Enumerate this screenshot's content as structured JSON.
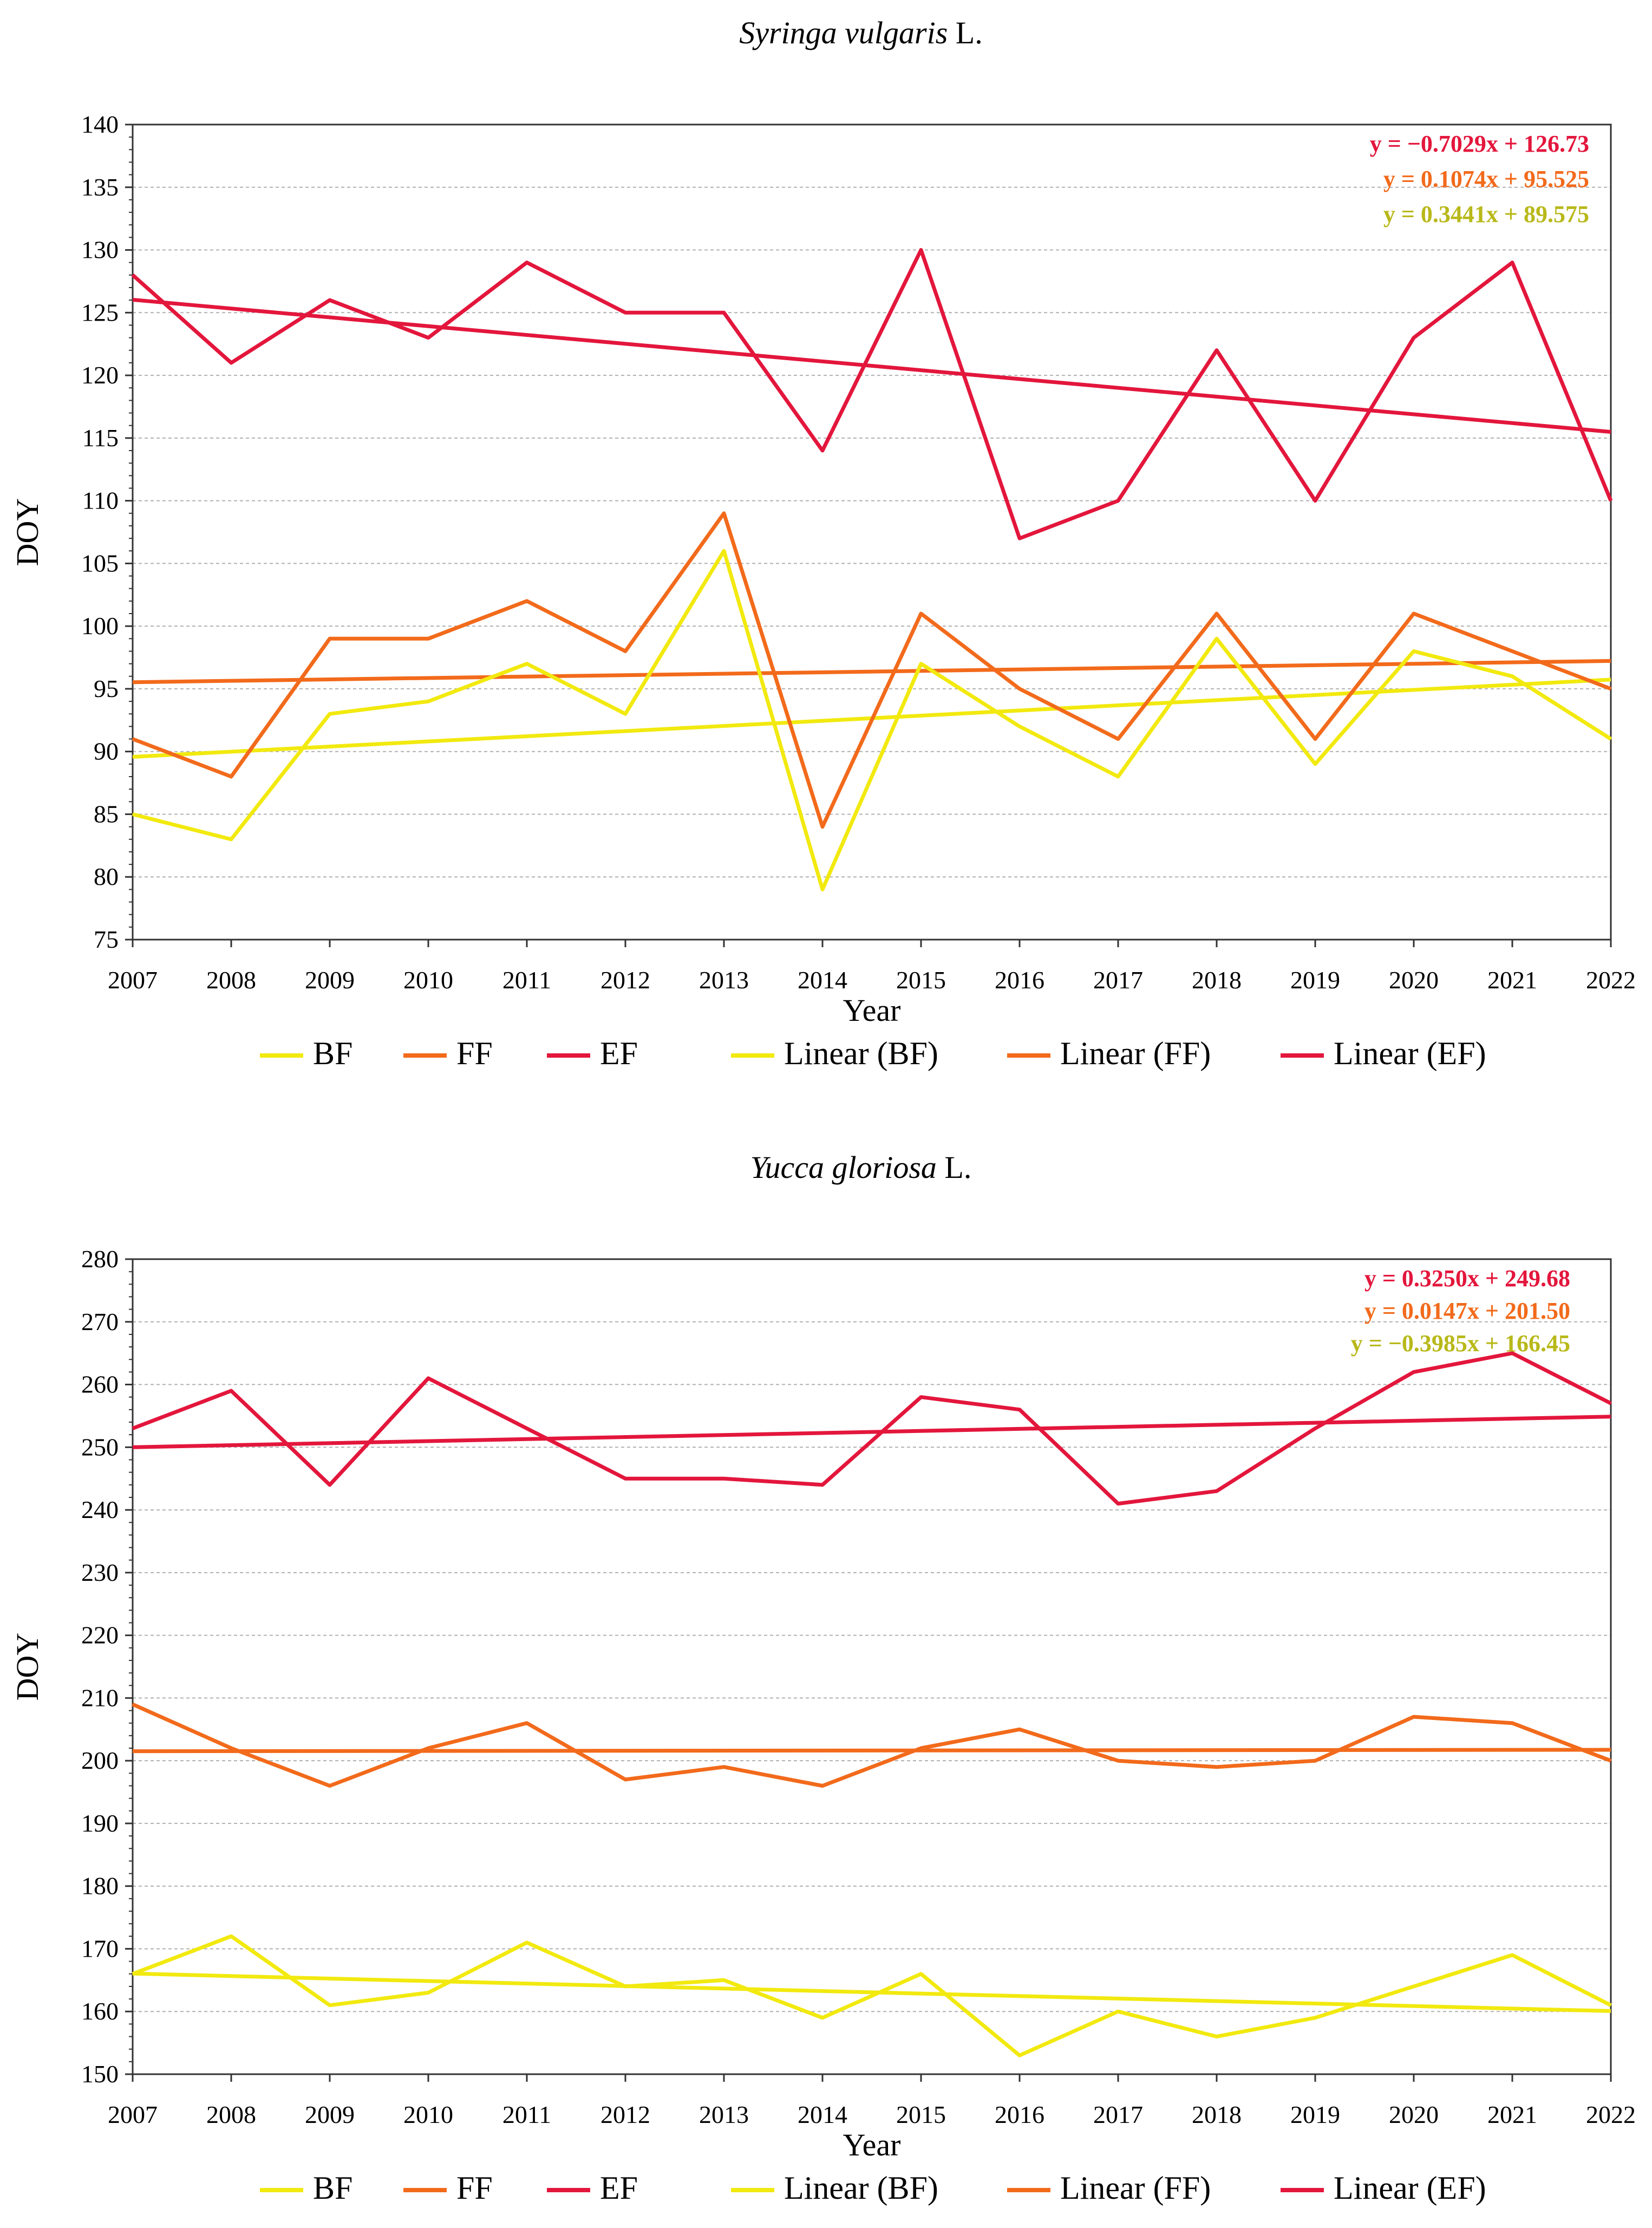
{
  "colors": {
    "BF": "#f2e90f",
    "FF": "#f26a1b",
    "EF": "#e3163c",
    "eqBF": "#b8b81a",
    "eqFF": "#f26a1b",
    "eqEF": "#e3163c"
  },
  "chart_data": [
    {
      "type": "line",
      "title": "Syringa vulgaris",
      "title_suffix": " L.",
      "xlabel": "Year",
      "ylabel": "DOY",
      "ylim": [
        75,
        140
      ],
      "ystep": 5,
      "categories": [
        "2007",
        "2008",
        "2009",
        "2010",
        "2011",
        "2012",
        "2013",
        "2014",
        "2015",
        "2016",
        "2017",
        "2018",
        "2019",
        "2020",
        "2021",
        "2022"
      ],
      "series": [
        {
          "key": "BF",
          "name": "BF",
          "values": [
            85,
            83,
            93,
            94,
            97,
            93,
            106,
            79,
            97,
            92,
            88,
            99,
            89,
            98,
            96,
            91
          ],
          "trend": [
            89.575,
            95.737
          ]
        },
        {
          "key": "FF",
          "name": "FF",
          "values": [
            91,
            88,
            99,
            99,
            102,
            98,
            109,
            84,
            101,
            95,
            91,
            101,
            91,
            101,
            98,
            95
          ],
          "trend": [
            95.525,
            97.224
          ]
        },
        {
          "key": "EF",
          "name": "EF",
          "values": [
            128,
            121,
            126,
            123,
            129,
            125,
            125,
            114,
            130,
            107,
            110,
            122,
            110,
            123,
            129,
            110
          ],
          "trend": [
            126.03,
            115.49
          ]
        }
      ],
      "equations": [
        {
          "key": "EF",
          "text": "y = −0.7029x + 126.73"
        },
        {
          "key": "FF",
          "text": "y = 0.1074x + 95.525"
        },
        {
          "key": "BF",
          "text": "y = 0.3441x + 89.575"
        }
      ],
      "legend": [
        "BF",
        "FF",
        "EF",
        "Linear (BF)",
        "Linear (FF)",
        "Linear (EF)"
      ]
    },
    {
      "type": "line",
      "title": "Yucca gloriosa",
      "title_suffix": " L.",
      "xlabel": "Year",
      "ylabel": "DOY",
      "ylim": [
        150,
        280
      ],
      "ystep": 10,
      "categories": [
        "2007",
        "2008",
        "2009",
        "2010",
        "2011",
        "2012",
        "2013",
        "2014",
        "2015",
        "2016",
        "2017",
        "2018",
        "2019",
        "2020",
        "2021",
        "2022"
      ],
      "series": [
        {
          "key": "BF",
          "name": "BF",
          "values": [
            166,
            172,
            161,
            163,
            171,
            164,
            165,
            159,
            166,
            153,
            160,
            156,
            159,
            164,
            169,
            161
          ],
          "trend": [
            166.05,
            160.07
          ]
        },
        {
          "key": "FF",
          "name": "FF",
          "values": [
            209,
            202,
            196,
            202,
            206,
            197,
            199,
            196,
            202,
            205,
            200,
            199,
            200,
            207,
            206,
            200
          ],
          "trend": [
            201.51,
            201.74
          ]
        },
        {
          "key": "EF",
          "name": "EF",
          "values": [
            253,
            259,
            244,
            261,
            253,
            245,
            245,
            244,
            258,
            256,
            241,
            243,
            253,
            262,
            265,
            257
          ],
          "trend": [
            250.0,
            254.88
          ]
        }
      ],
      "equations": [
        {
          "key": "EF",
          "text": "y = 0.3250x + 249.68"
        },
        {
          "key": "FF",
          "text": "y = 0.0147x + 201.50"
        },
        {
          "key": "BF",
          "text": "y = −0.3985x + 166.45"
        }
      ],
      "legend": [
        "BF",
        "FF",
        "EF",
        "Linear (BF)",
        "Linear (FF)",
        "Linear (EF)"
      ]
    }
  ]
}
